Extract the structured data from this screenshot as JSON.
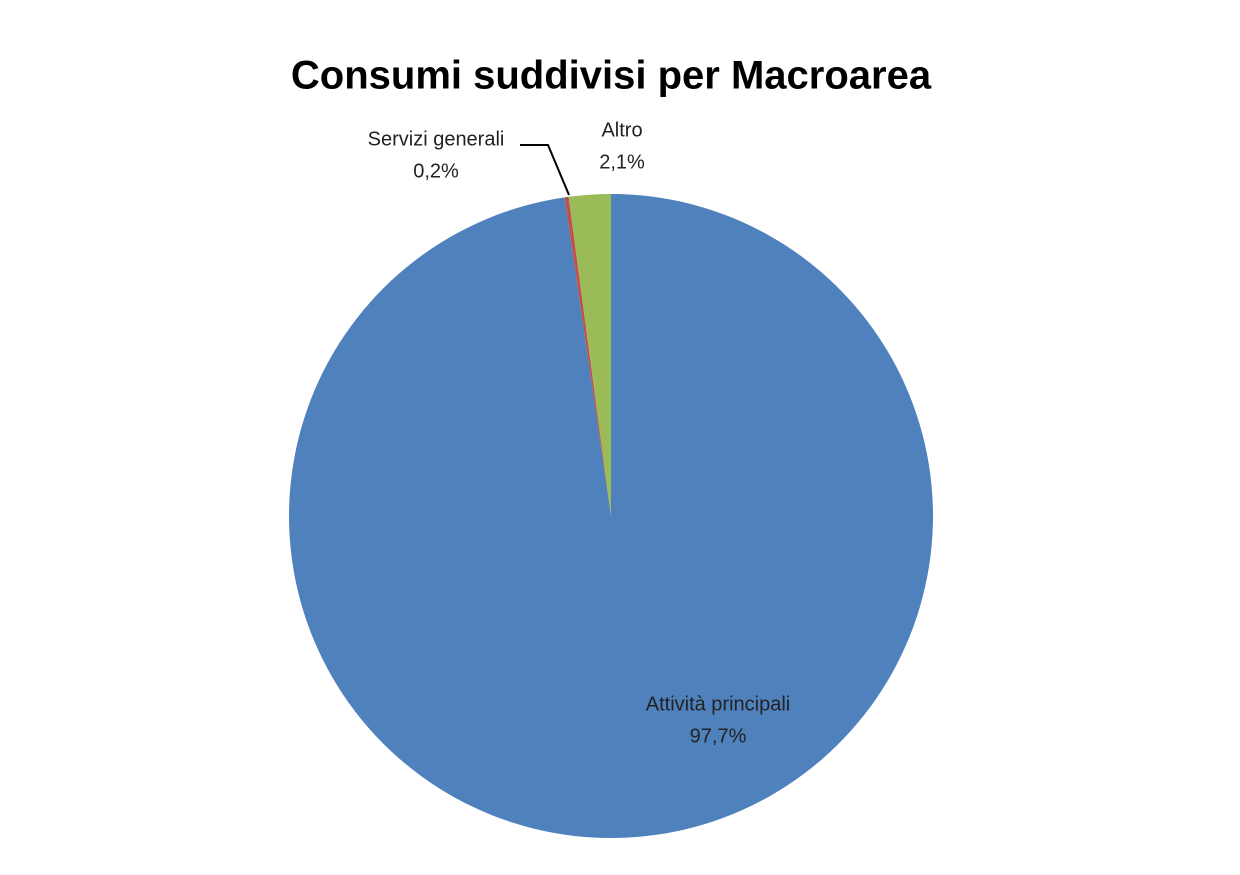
{
  "chart_data": {
    "type": "pie",
    "title": "Consumi suddivisi per Macroarea",
    "categories": [
      "Attività principali",
      "Servizi generali",
      "Altro"
    ],
    "values": [
      97.7,
      0.2,
      2.1
    ],
    "value_labels": [
      "97,7%",
      "0,2%",
      "2,1%"
    ],
    "colors": [
      "#4f81bd",
      "#c0504d",
      "#9bbb59"
    ]
  }
}
